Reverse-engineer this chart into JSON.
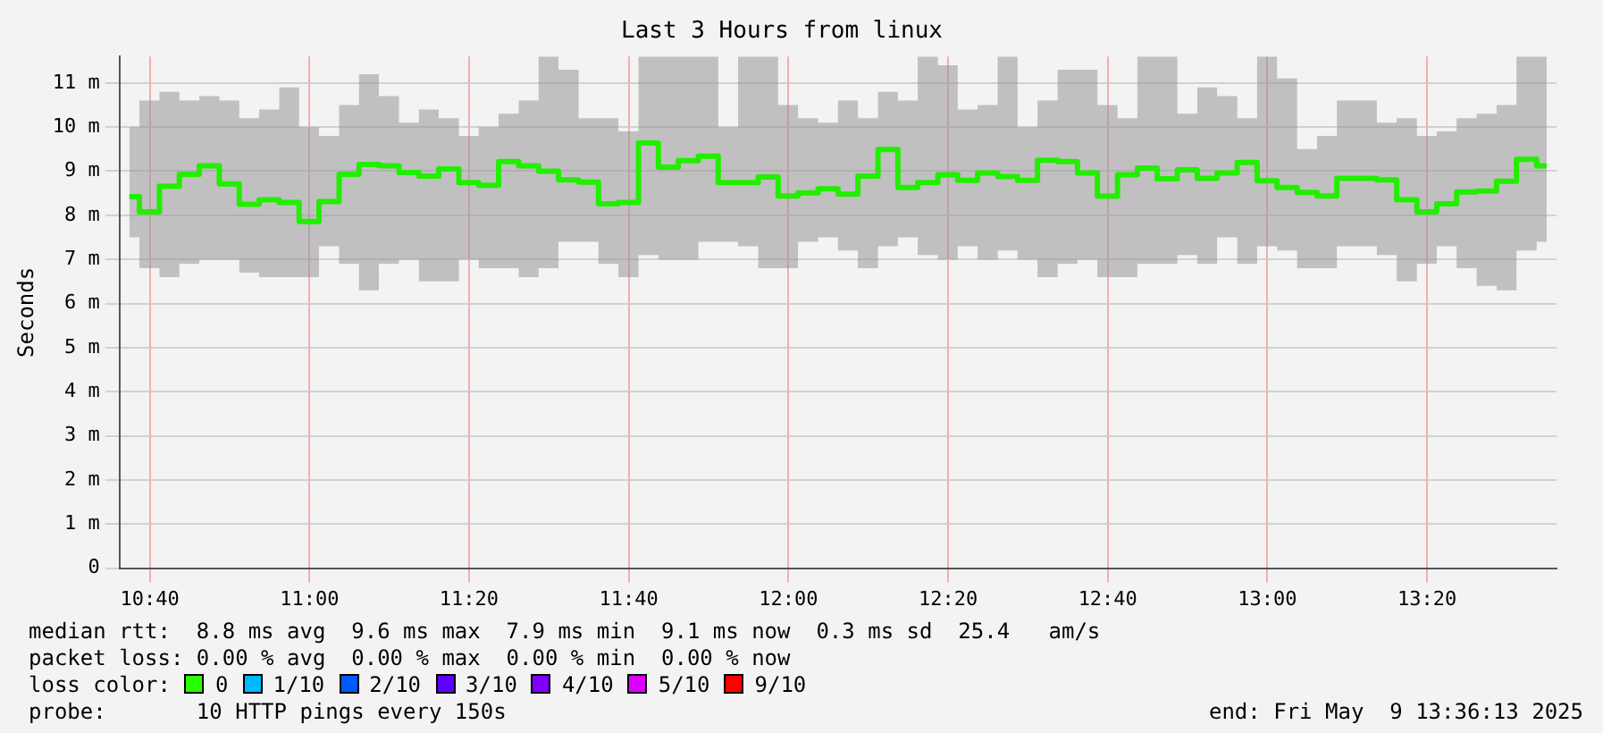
{
  "chart_data": {
    "type": "step",
    "title": "Last 3 Hours from linux",
    "ylabel": "Seconds",
    "x": [
      10.624,
      10.666,
      10.708,
      10.749,
      10.791,
      10.833,
      10.874,
      10.916,
      10.958,
      10.999,
      11.041,
      11.083,
      11.124,
      11.166,
      11.208,
      11.249,
      11.291,
      11.333,
      11.374,
      11.416,
      11.458,
      11.499,
      11.541,
      11.583,
      11.624,
      11.666,
      11.708,
      11.749,
      11.791,
      11.833,
      11.874,
      11.916,
      11.958,
      11.999,
      12.041,
      12.083,
      12.124,
      12.166,
      12.208,
      12.249,
      12.291,
      12.333,
      12.374,
      12.416,
      12.458,
      12.499,
      12.541,
      12.583,
      12.624,
      12.666,
      12.708,
      12.749,
      12.791,
      12.833,
      12.874,
      12.916,
      12.958,
      12.999,
      13.041,
      13.083,
      13.124,
      13.166,
      13.208,
      13.249,
      13.291,
      13.333,
      13.374,
      13.416,
      13.458,
      13.499,
      13.541,
      13.583
    ],
    "series": [
      {
        "color": "#22ee00",
        "values": [
          8.42,
          8.08,
          8.66,
          8.93,
          9.12,
          8.71,
          8.25,
          8.35,
          8.29,
          7.86,
          8.31,
          8.93,
          9.15,
          9.12,
          8.97,
          8.89,
          9.05,
          8.74,
          8.68,
          9.22,
          9.12,
          9.0,
          8.8,
          8.75,
          8.26,
          8.29,
          9.64,
          9.09,
          9.24,
          9.34,
          8.74,
          8.74,
          8.87,
          8.44,
          8.51,
          8.6,
          8.48,
          8.89,
          9.49,
          8.63,
          8.74,
          8.92,
          8.79,
          8.96,
          8.88,
          8.79,
          9.25,
          9.22,
          8.96,
          8.43,
          8.92,
          9.07,
          8.83,
          9.03,
          8.84,
          8.96,
          9.2,
          8.78,
          8.63,
          8.52,
          8.44,
          8.84,
          8.84,
          8.8,
          8.35,
          8.08,
          8.26,
          8.53,
          8.55,
          8.77,
          9.27,
          9.12
        ],
        "lower": [
          7.5,
          6.8,
          6.6,
          6.9,
          7.0,
          7.0,
          6.7,
          6.6,
          6.6,
          6.6,
          7.3,
          6.9,
          6.3,
          6.9,
          7.0,
          6.5,
          6.5,
          7.0,
          6.8,
          6.8,
          6.6,
          6.8,
          7.4,
          7.4,
          6.9,
          6.6,
          7.1,
          7.0,
          7.0,
          7.4,
          7.4,
          7.3,
          6.8,
          6.8,
          7.4,
          7.5,
          7.2,
          6.8,
          7.3,
          7.5,
          7.1,
          7.0,
          7.3,
          7.0,
          7.2,
          7.0,
          6.6,
          6.9,
          7.0,
          6.6,
          6.6,
          6.9,
          6.9,
          7.1,
          6.9,
          7.5,
          6.9,
          7.3,
          7.2,
          6.8,
          6.8,
          7.3,
          7.3,
          7.1,
          6.5,
          6.9,
          7.3,
          6.8,
          6.4,
          6.3,
          7.2,
          7.4
        ],
        "upper": [
          10.0,
          10.6,
          10.8,
          10.6,
          10.7,
          10.6,
          10.2,
          10.4,
          10.9,
          10.0,
          9.8,
          10.5,
          11.2,
          10.7,
          10.1,
          10.4,
          10.2,
          9.8,
          10.0,
          10.3,
          10.6,
          11.6,
          11.3,
          10.2,
          10.2,
          9.9,
          11.6,
          11.6,
          11.6,
          11.6,
          10.0,
          11.6,
          11.6,
          10.5,
          10.2,
          10.1,
          10.6,
          10.2,
          10.8,
          10.6,
          11.6,
          11.4,
          10.4,
          10.5,
          11.6,
          10.0,
          10.6,
          11.3,
          11.3,
          10.5,
          10.2,
          11.6,
          11.6,
          10.3,
          10.9,
          10.7,
          10.2,
          11.6,
          11.1,
          9.5,
          9.8,
          10.6,
          10.6,
          10.1,
          10.2,
          9.8,
          9.9,
          10.2,
          10.3,
          10.5,
          11.6,
          11.6
        ]
      }
    ],
    "xlim": [
      10.6036,
      13.6036
    ],
    "xticks": [
      {
        "value": 10.6667,
        "label": "10:40"
      },
      {
        "value": 11,
        "label": "11:00"
      },
      {
        "value": 11.3333,
        "label": "11:20"
      },
      {
        "value": 11.6667,
        "label": "11:40"
      },
      {
        "value": 12,
        "label": "12:00"
      },
      {
        "value": 12.3333,
        "label": "12:20"
      },
      {
        "value": 12.6667,
        "label": "12:40"
      },
      {
        "value": 13,
        "label": "13:00"
      },
      {
        "value": 13.3333,
        "label": "13:20"
      }
    ],
    "ylim": [
      0,
      11.6
    ],
    "yticks": [
      0,
      {
        "value": 1,
        "label": "1 m"
      },
      {
        "value": 2,
        "label": "2 m"
      },
      {
        "value": 3,
        "label": "3 m"
      },
      {
        "value": 4,
        "label": "4 m"
      },
      {
        "value": 5,
        "label": "5 m"
      },
      {
        "value": 6,
        "label": "6 m"
      },
      {
        "value": 7,
        "label": "7 m"
      },
      {
        "value": 8,
        "label": "8 m"
      },
      {
        "value": 9,
        "label": "9 m"
      },
      {
        "value": 10,
        "label": "10 m"
      },
      {
        "value": 11,
        "label": "11 m"
      }
    ],
    "grid": true,
    "legend": false,
    "marker": "none",
    "line_style": "solid",
    "annotations": [
      "median rtt:  8.8 ms avg  9.6 ms max  7.9 ms min  9.1 ms now  0.3 ms sd  25.4   am/s",
      "packet loss: 0.00 % avg  0.00 % max  0.00 % min  0.00 % now",
      "loss color:",
      "0",
      "1/10",
      "2/10",
      "3/10",
      "4/10",
      "5/10",
      "9/10",
      "probe:       10 HTTP pings every 150s",
      "end: Fri May  9 13:36:13 2025"
    ]
  }
}
